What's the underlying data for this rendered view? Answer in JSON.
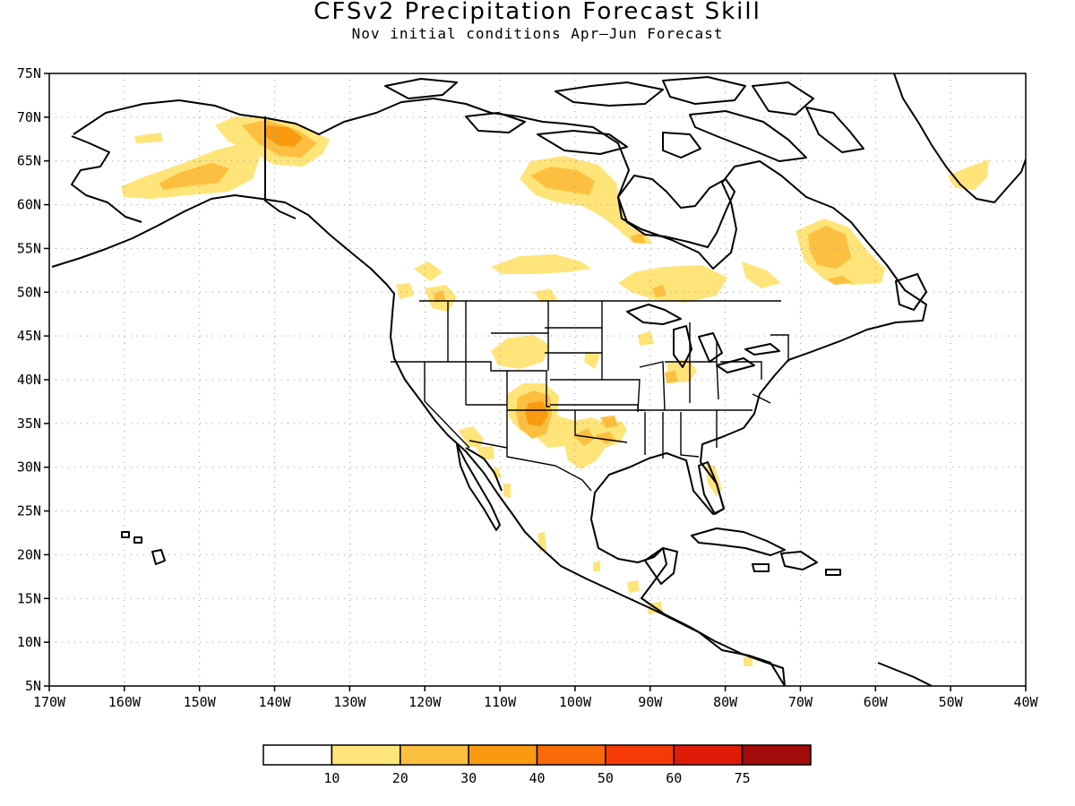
{
  "title": "CFSv2 Precipitation Forecast Skill",
  "subtitle": "Nov initial conditions  Apr–Jun Forecast",
  "map": {
    "lat_range": [
      5,
      75
    ],
    "lon_range": [
      -170,
      -40
    ],
    "lat_ticks": [
      {
        "value": 75,
        "label": "75N"
      },
      {
        "value": 70,
        "label": "70N"
      },
      {
        "value": 65,
        "label": "65N"
      },
      {
        "value": 60,
        "label": "60N"
      },
      {
        "value": 55,
        "label": "55N"
      },
      {
        "value": 50,
        "label": "50N"
      },
      {
        "value": 45,
        "label": "45N"
      },
      {
        "value": 40,
        "label": "40N"
      },
      {
        "value": 35,
        "label": "35N"
      },
      {
        "value": 30,
        "label": "30N"
      },
      {
        "value": 25,
        "label": "25N"
      },
      {
        "value": 20,
        "label": "20N"
      },
      {
        "value": 15,
        "label": "15N"
      },
      {
        "value": 10,
        "label": "10N"
      },
      {
        "value": 5,
        "label": "5N"
      }
    ],
    "lon_ticks": [
      {
        "value": -170,
        "label": "170W"
      },
      {
        "value": -160,
        "label": "160W"
      },
      {
        "value": -150,
        "label": "150W"
      },
      {
        "value": -140,
        "label": "140W"
      },
      {
        "value": -130,
        "label": "130W"
      },
      {
        "value": -120,
        "label": "120W"
      },
      {
        "value": -110,
        "label": "110W"
      },
      {
        "value": -100,
        "label": "100W"
      },
      {
        "value": -90,
        "label": "90W"
      },
      {
        "value": -80,
        "label": "80W"
      },
      {
        "value": -70,
        "label": "70W"
      },
      {
        "value": -60,
        "label": "60W"
      },
      {
        "value": -50,
        "label": "50W"
      },
      {
        "value": -40,
        "label": "40W"
      }
    ],
    "grid": "dotted"
  },
  "legend": {
    "colors": [
      "#ffffff",
      "#ffe47a",
      "#fcbf3f",
      "#f99a10",
      "#f96a08",
      "#f53a08",
      "#df1a06",
      "#a30a0a"
    ],
    "labels": [
      "10",
      "20",
      "30",
      "40",
      "50",
      "60",
      "75"
    ]
  }
}
